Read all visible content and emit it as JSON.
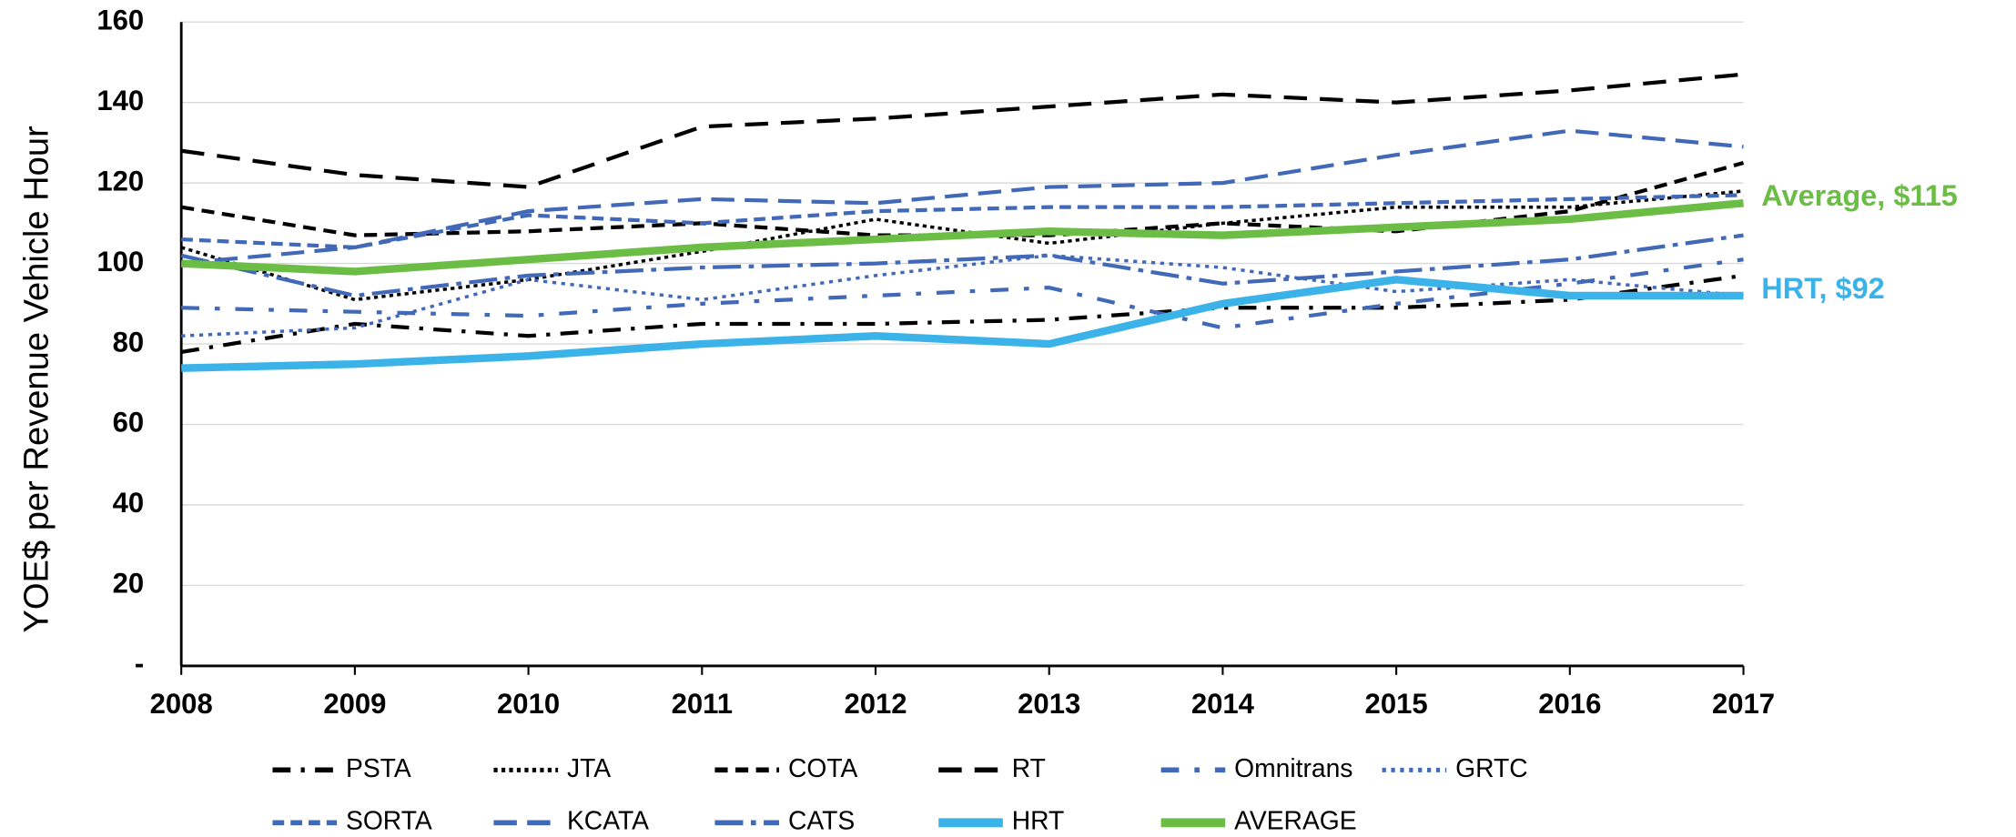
{
  "chart_data": {
    "type": "line",
    "y_label": "YOE$ per Revenue Vehicle Hour",
    "categories": [
      "2008",
      "2009",
      "2010",
      "2011",
      "2012",
      "2013",
      "2014",
      "2015",
      "2016",
      "2017"
    ],
    "ylim": [
      0,
      160
    ],
    "yticks": [
      {
        "value": 0,
        "label": "-"
      },
      20,
      40,
      60,
      80,
      100,
      120,
      140,
      160
    ],
    "grid": true,
    "series": [
      {
        "name": "PSTA",
        "color": "#000000",
        "values": [
          78,
          85,
          82,
          85,
          85,
          86,
          89,
          89,
          91,
          97
        ]
      },
      {
        "name": "JTA",
        "color": "#000000",
        "values": [
          104,
          91,
          96,
          103,
          111,
          105,
          110,
          114,
          114,
          118
        ]
      },
      {
        "name": "COTA",
        "color": "#000000",
        "values": [
          114,
          107,
          108,
          110,
          107,
          107,
          110,
          108,
          113,
          125
        ]
      },
      {
        "name": "RT",
        "color": "#000000",
        "values": [
          128,
          122,
          119,
          134,
          136,
          139,
          142,
          140,
          143,
          147
        ]
      },
      {
        "name": "Omnitrans",
        "color": "#4169b8",
        "values": [
          89,
          88,
          87,
          90,
          92,
          94,
          84,
          90,
          95,
          101
        ]
      },
      {
        "name": "GRTC",
        "color": "#4169b8",
        "values": [
          82,
          84,
          96,
          91,
          97,
          102,
          99,
          93,
          96,
          92
        ]
      },
      {
        "name": "SORTA",
        "color": "#4169b8",
        "values": [
          106,
          104,
          112,
          110,
          113,
          114,
          114,
          115,
          116,
          117
        ]
      },
      {
        "name": "KCATA",
        "color": "#4169b8",
        "values": [
          100,
          104,
          113,
          116,
          115,
          119,
          120,
          127,
          133,
          129
        ]
      },
      {
        "name": "CATS",
        "color": "#4169b8",
        "values": [
          102,
          92,
          97,
          99,
          100,
          102,
          95,
          98,
          101,
          107
        ]
      },
      {
        "name": "HRT",
        "color": "#3bb3e8",
        "values": [
          74,
          75,
          77,
          80,
          82,
          80,
          90,
          96,
          92,
          92
        ]
      },
      {
        "name": "AVERAGE",
        "color": "#6cbd45",
        "values": [
          100,
          98,
          101,
          104,
          106,
          108,
          107,
          109,
          111,
          115
        ]
      }
    ],
    "annotations": [
      {
        "text": "Average, $115",
        "color": "#6cbd45",
        "series": 10
      },
      {
        "text": "HRT, $92",
        "color": "#3bb3e8",
        "series": 9
      }
    ]
  }
}
